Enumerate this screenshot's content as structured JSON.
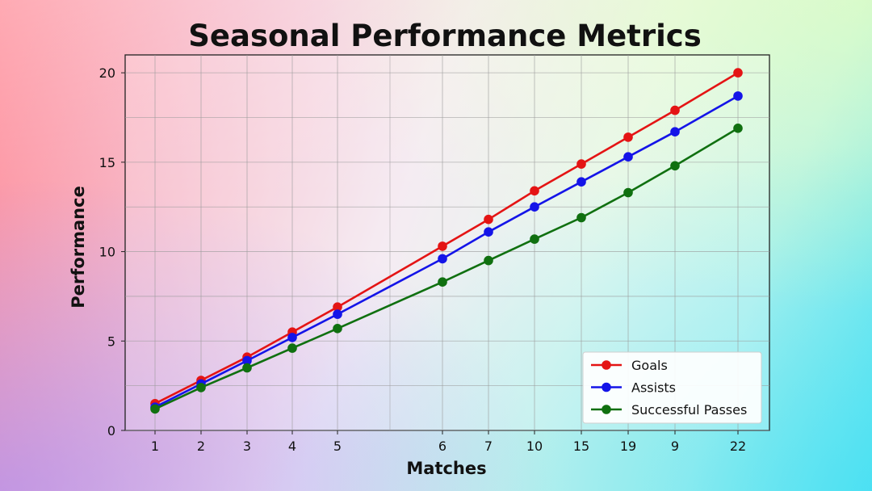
{
  "chart_data": {
    "type": "line",
    "title": "Seasonal Performance Metrics",
    "xlabel": "Matches",
    "ylabel": "Performance",
    "categories": [
      "1",
      "2",
      "3",
      "4",
      "5",
      "6",
      "7",
      "10",
      "15",
      "19",
      "9",
      "22"
    ],
    "ylim": [
      0,
      21
    ],
    "yticks": [
      0,
      5,
      10,
      15,
      20
    ],
    "grid": true,
    "legend_position": "bottom-right",
    "series": [
      {
        "name": "Goals",
        "color": "#e41414",
        "values": [
          1.5,
          2.8,
          4.1,
          5.5,
          6.9,
          10.3,
          11.8,
          13.4,
          14.9,
          16.4,
          17.9,
          20.0
        ]
      },
      {
        "name": "Assists",
        "color": "#1414e8",
        "values": [
          1.3,
          2.6,
          3.9,
          5.2,
          6.5,
          9.6,
          11.1,
          12.5,
          13.9,
          15.3,
          16.7,
          18.7
        ]
      },
      {
        "name": "Successful Passes",
        "color": "#107010",
        "values": [
          1.2,
          2.4,
          3.5,
          4.6,
          5.7,
          8.3,
          9.5,
          10.7,
          11.9,
          13.3,
          14.8,
          16.9
        ]
      }
    ]
  }
}
